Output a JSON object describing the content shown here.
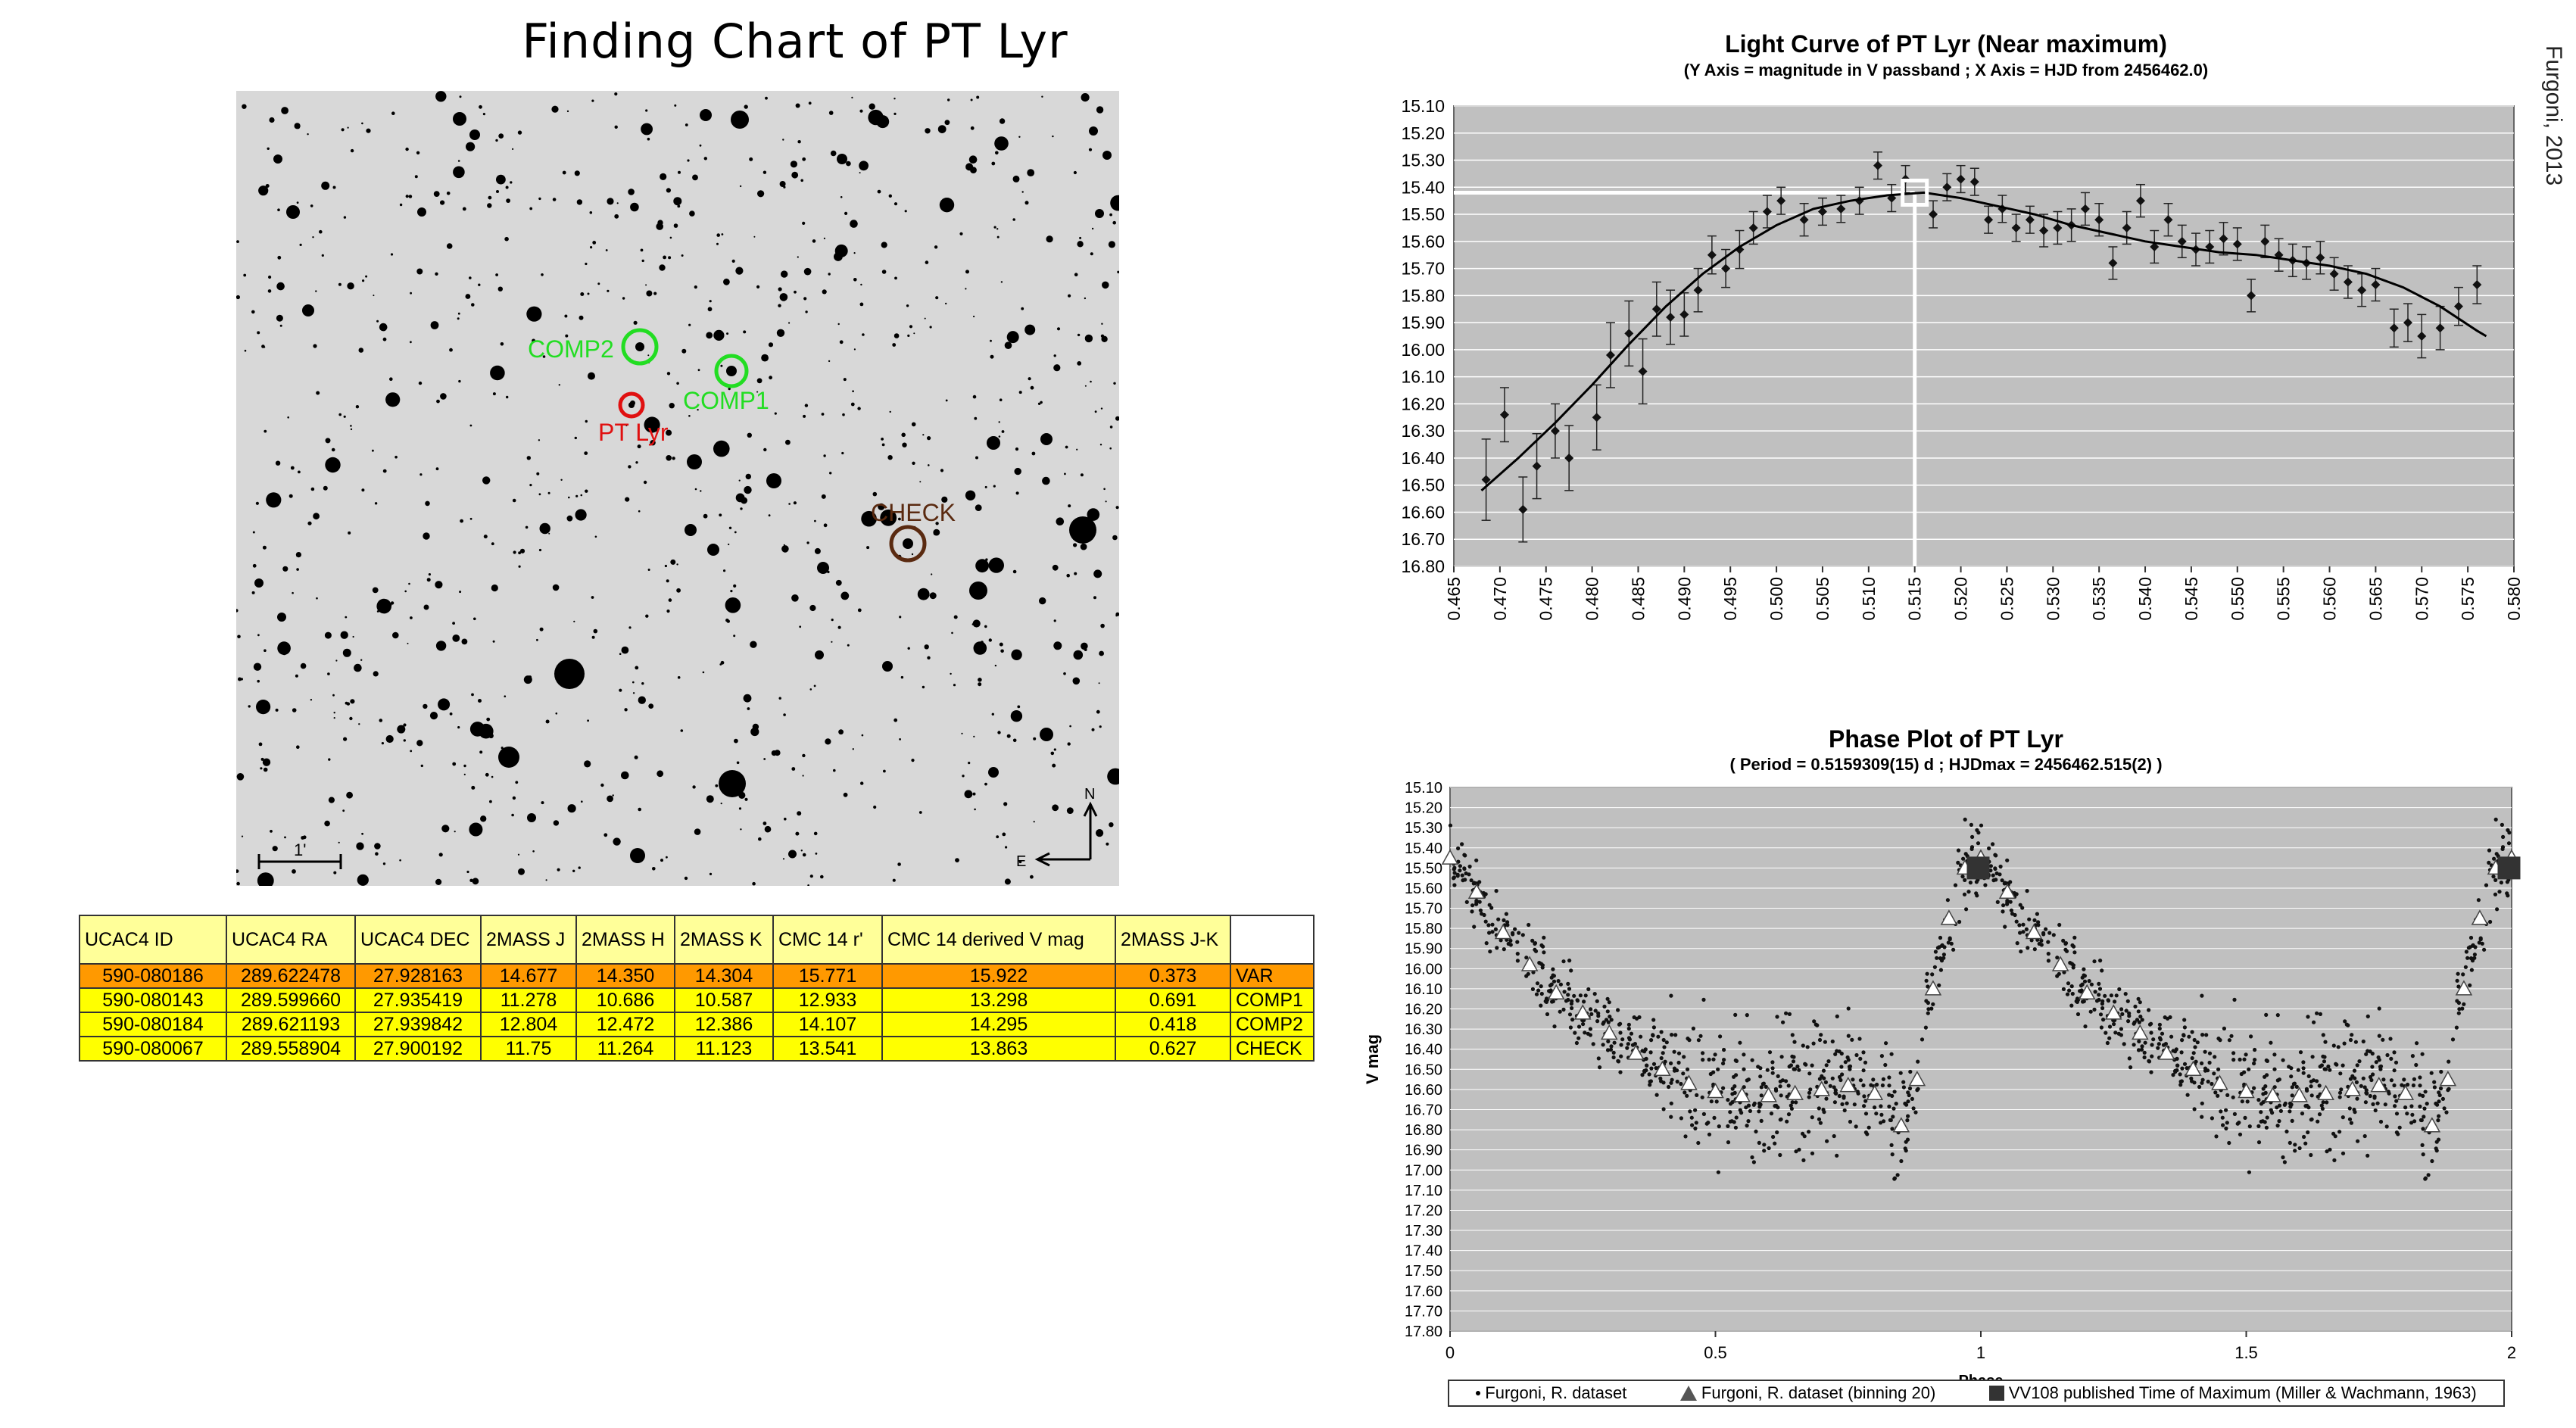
{
  "finding_chart": {
    "title": "Finding Chart of PT Lyr",
    "scale_label": "1'",
    "north_label": "N",
    "east_label": "E",
    "markers": [
      {
        "label": "COMP2",
        "color": "#22dd22"
      },
      {
        "label": "COMP1",
        "color": "#22dd22"
      },
      {
        "label": "PT Lyr",
        "color": "#e01010"
      },
      {
        "label": "CHECK",
        "color": "#5a2a10"
      }
    ]
  },
  "credit": "Furgoni, 2013",
  "star_table": {
    "headers": [
      "UCAC4 ID",
      "UCAC4 RA",
      "UCAC4 DEC",
      "2MASS J",
      "2MASS H",
      "2MASS K",
      "CMC 14 r'",
      "CMC 14 derived V mag",
      "2MASS J-K",
      ""
    ],
    "rows": [
      [
        "590-080186",
        "289.622478",
        "27.928163",
        "14.677",
        "14.350",
        "14.304",
        "15.771",
        "15.922",
        "0.373",
        "VAR"
      ],
      [
        "590-080143",
        "289.599660",
        "27.935419",
        "11.278",
        "10.686",
        "10.587",
        "12.933",
        "13.298",
        "0.691",
        "COMP1"
      ],
      [
        "590-080184",
        "289.621193",
        "27.939842",
        "12.804",
        "12.472",
        "12.386",
        "14.107",
        "14.295",
        "0.418",
        "COMP2"
      ],
      [
        "590-080067",
        "289.558904",
        "27.900192",
        "11.75",
        "11.264",
        "11.123",
        "13.541",
        "13.863",
        "0.627",
        "CHECK"
      ]
    ]
  },
  "colors": {
    "plot_bg": "#c0c0c0",
    "var_row": "#ff9900",
    "comp_row": "#ffff00",
    "header_row": "#ffff99",
    "comp_marker": "#22dd22",
    "var_marker": "#e01010",
    "check_marker": "#5a2a10"
  },
  "chart_data": [
    {
      "type": "scatter",
      "title": "Light Curve of PT Lyr (Near maximum)",
      "subtitle": "(Y Axis = magnitude in V passband ; X Axis = HJD from 2456462.0)",
      "xlabel": "",
      "ylabel": "",
      "xlim": [
        0.465,
        0.58
      ],
      "ylim": [
        15.1,
        16.8
      ],
      "y_inverted": true,
      "x_tick_step": 0.005,
      "y_tick_step": 0.1,
      "grid": true,
      "maximum": {
        "x": 0.515,
        "y": 15.42
      },
      "points": [
        {
          "x": 0.4685,
          "y": 16.48,
          "err": 0.15
        },
        {
          "x": 0.4705,
          "y": 16.24,
          "err": 0.1
        },
        {
          "x": 0.4725,
          "y": 16.59,
          "err": 0.12
        },
        {
          "x": 0.474,
          "y": 16.43,
          "err": 0.12
        },
        {
          "x": 0.476,
          "y": 16.3,
          "err": 0.1
        },
        {
          "x": 0.4775,
          "y": 16.4,
          "err": 0.12
        },
        {
          "x": 0.4805,
          "y": 16.25,
          "err": 0.12
        },
        {
          "x": 0.482,
          "y": 16.02,
          "err": 0.12
        },
        {
          "x": 0.484,
          "y": 15.94,
          "err": 0.12
        },
        {
          "x": 0.4855,
          "y": 16.08,
          "err": 0.12
        },
        {
          "x": 0.487,
          "y": 15.85,
          "err": 0.1
        },
        {
          "x": 0.4885,
          "y": 15.88,
          "err": 0.1
        },
        {
          "x": 0.49,
          "y": 15.87,
          "err": 0.08
        },
        {
          "x": 0.4915,
          "y": 15.78,
          "err": 0.08
        },
        {
          "x": 0.493,
          "y": 15.65,
          "err": 0.07
        },
        {
          "x": 0.4945,
          "y": 15.7,
          "err": 0.07
        },
        {
          "x": 0.496,
          "y": 15.63,
          "err": 0.07
        },
        {
          "x": 0.4975,
          "y": 15.55,
          "err": 0.06
        },
        {
          "x": 0.499,
          "y": 15.49,
          "err": 0.06
        },
        {
          "x": 0.5005,
          "y": 15.45,
          "err": 0.05
        },
        {
          "x": 0.503,
          "y": 15.52,
          "err": 0.06
        },
        {
          "x": 0.505,
          "y": 15.49,
          "err": 0.05
        },
        {
          "x": 0.507,
          "y": 15.48,
          "err": 0.05
        },
        {
          "x": 0.509,
          "y": 15.45,
          "err": 0.05
        },
        {
          "x": 0.511,
          "y": 15.32,
          "err": 0.05
        },
        {
          "x": 0.5125,
          "y": 15.44,
          "err": 0.05
        },
        {
          "x": 0.514,
          "y": 15.37,
          "err": 0.05
        },
        {
          "x": 0.517,
          "y": 15.5,
          "err": 0.05
        },
        {
          "x": 0.5185,
          "y": 15.4,
          "err": 0.05
        },
        {
          "x": 0.52,
          "y": 15.37,
          "err": 0.05
        },
        {
          "x": 0.5215,
          "y": 15.38,
          "err": 0.05
        },
        {
          "x": 0.523,
          "y": 15.52,
          "err": 0.05
        },
        {
          "x": 0.5245,
          "y": 15.48,
          "err": 0.05
        },
        {
          "x": 0.526,
          "y": 15.55,
          "err": 0.05
        },
        {
          "x": 0.5275,
          "y": 15.52,
          "err": 0.05
        },
        {
          "x": 0.529,
          "y": 15.56,
          "err": 0.06
        },
        {
          "x": 0.5305,
          "y": 15.55,
          "err": 0.06
        },
        {
          "x": 0.532,
          "y": 15.54,
          "err": 0.06
        },
        {
          "x": 0.5335,
          "y": 15.48,
          "err": 0.06
        },
        {
          "x": 0.535,
          "y": 15.52,
          "err": 0.06
        },
        {
          "x": 0.5365,
          "y": 15.68,
          "err": 0.06
        },
        {
          "x": 0.538,
          "y": 15.55,
          "err": 0.06
        },
        {
          "x": 0.5395,
          "y": 15.45,
          "err": 0.06
        },
        {
          "x": 0.541,
          "y": 15.62,
          "err": 0.06
        },
        {
          "x": 0.5425,
          "y": 15.52,
          "err": 0.06
        },
        {
          "x": 0.544,
          "y": 15.6,
          "err": 0.06
        },
        {
          "x": 0.5455,
          "y": 15.63,
          "err": 0.06
        },
        {
          "x": 0.547,
          "y": 15.62,
          "err": 0.06
        },
        {
          "x": 0.5485,
          "y": 15.59,
          "err": 0.06
        },
        {
          "x": 0.55,
          "y": 15.61,
          "err": 0.06
        },
        {
          "x": 0.5515,
          "y": 15.8,
          "err": 0.06
        },
        {
          "x": 0.553,
          "y": 15.6,
          "err": 0.06
        },
        {
          "x": 0.5545,
          "y": 15.65,
          "err": 0.06
        },
        {
          "x": 0.556,
          "y": 15.67,
          "err": 0.06
        },
        {
          "x": 0.5575,
          "y": 15.68,
          "err": 0.06
        },
        {
          "x": 0.559,
          "y": 15.66,
          "err": 0.06
        },
        {
          "x": 0.5605,
          "y": 15.72,
          "err": 0.06
        },
        {
          "x": 0.562,
          "y": 15.75,
          "err": 0.06
        },
        {
          "x": 0.5635,
          "y": 15.78,
          "err": 0.06
        },
        {
          "x": 0.565,
          "y": 15.76,
          "err": 0.06
        },
        {
          "x": 0.567,
          "y": 15.92,
          "err": 0.07
        },
        {
          "x": 0.5685,
          "y": 15.9,
          "err": 0.07
        },
        {
          "x": 0.57,
          "y": 15.95,
          "err": 0.08
        },
        {
          "x": 0.572,
          "y": 15.92,
          "err": 0.08
        },
        {
          "x": 0.574,
          "y": 15.84,
          "err": 0.07
        },
        {
          "x": 0.576,
          "y": 15.76,
          "err": 0.07
        }
      ],
      "fit_curve": [
        {
          "x": 0.468,
          "y": 16.52
        },
        {
          "x": 0.472,
          "y": 16.4
        },
        {
          "x": 0.476,
          "y": 16.27
        },
        {
          "x": 0.48,
          "y": 16.13
        },
        {
          "x": 0.484,
          "y": 15.98
        },
        {
          "x": 0.488,
          "y": 15.84
        },
        {
          "x": 0.492,
          "y": 15.72
        },
        {
          "x": 0.496,
          "y": 15.62
        },
        {
          "x": 0.5,
          "y": 15.54
        },
        {
          "x": 0.504,
          "y": 15.48
        },
        {
          "x": 0.508,
          "y": 15.45
        },
        {
          "x": 0.512,
          "y": 15.43
        },
        {
          "x": 0.516,
          "y": 15.42
        },
        {
          "x": 0.52,
          "y": 15.44
        },
        {
          "x": 0.524,
          "y": 15.47
        },
        {
          "x": 0.528,
          "y": 15.5
        },
        {
          "x": 0.532,
          "y": 15.54
        },
        {
          "x": 0.536,
          "y": 15.57
        },
        {
          "x": 0.54,
          "y": 15.6
        },
        {
          "x": 0.544,
          "y": 15.62
        },
        {
          "x": 0.548,
          "y": 15.64
        },
        {
          "x": 0.552,
          "y": 15.65
        },
        {
          "x": 0.556,
          "y": 15.67
        },
        {
          "x": 0.56,
          "y": 15.69
        },
        {
          "x": 0.564,
          "y": 15.72
        },
        {
          "x": 0.568,
          "y": 15.77
        },
        {
          "x": 0.572,
          "y": 15.84
        },
        {
          "x": 0.576,
          "y": 15.93
        },
        {
          "x": 0.577,
          "y": 15.95
        }
      ]
    },
    {
      "type": "scatter",
      "title": "Phase Plot of PT Lyr",
      "subtitle": "( Period = 0.5159309(15) d ; HJDmax = 2456462.515(2) )",
      "xlabel": "Phase",
      "ylabel": "V mag",
      "xlim": [
        0,
        2
      ],
      "ylim": [
        15.1,
        17.8
      ],
      "y_inverted": true,
      "x_ticks": [
        "0",
        "0.5",
        "1",
        "1.5",
        "2"
      ],
      "y_tick_step": 0.1,
      "grid": true,
      "legend_position": "bottom",
      "series": [
        {
          "name": "Furgoni, R. dataset",
          "marker": "dot"
        },
        {
          "name": "Furgoni, R. dataset (binning 20)",
          "marker": "triangle",
          "points": [
            {
              "x": 0.0,
              "y": 15.45
            },
            {
              "x": 0.05,
              "y": 15.62
            },
            {
              "x": 0.1,
              "y": 15.82
            },
            {
              "x": 0.15,
              "y": 15.98
            },
            {
              "x": 0.2,
              "y": 16.12
            },
            {
              "x": 0.25,
              "y": 16.22
            },
            {
              "x": 0.3,
              "y": 16.32
            },
            {
              "x": 0.35,
              "y": 16.42
            },
            {
              "x": 0.4,
              "y": 16.5
            },
            {
              "x": 0.45,
              "y": 16.57
            },
            {
              "x": 0.5,
              "y": 16.61
            },
            {
              "x": 0.55,
              "y": 16.63
            },
            {
              "x": 0.6,
              "y": 16.63
            },
            {
              "x": 0.65,
              "y": 16.62
            },
            {
              "x": 0.7,
              "y": 16.6
            },
            {
              "x": 0.75,
              "y": 16.58
            },
            {
              "x": 0.8,
              "y": 16.62
            },
            {
              "x": 0.85,
              "y": 16.78
            },
            {
              "x": 0.88,
              "y": 16.55
            },
            {
              "x": 0.91,
              "y": 16.1
            },
            {
              "x": 0.94,
              "y": 15.75
            },
            {
              "x": 0.97,
              "y": 15.5
            },
            {
              "x": 1.0,
              "y": 15.45
            }
          ]
        },
        {
          "name": "VV108 published Time of Maximum (Miller & Wachmann, 1963)",
          "marker": "square",
          "points": [
            {
              "x": 0.995,
              "y": 15.5
            },
            {
              "x": 1.995,
              "y": 15.5
            }
          ]
        }
      ]
    }
  ],
  "legend": [
    "Furgoni, R. dataset",
    "Furgoni, R. dataset (binning 20)",
    "VV108 published Time of Maximum (Miller & Wachmann, 1963)"
  ]
}
